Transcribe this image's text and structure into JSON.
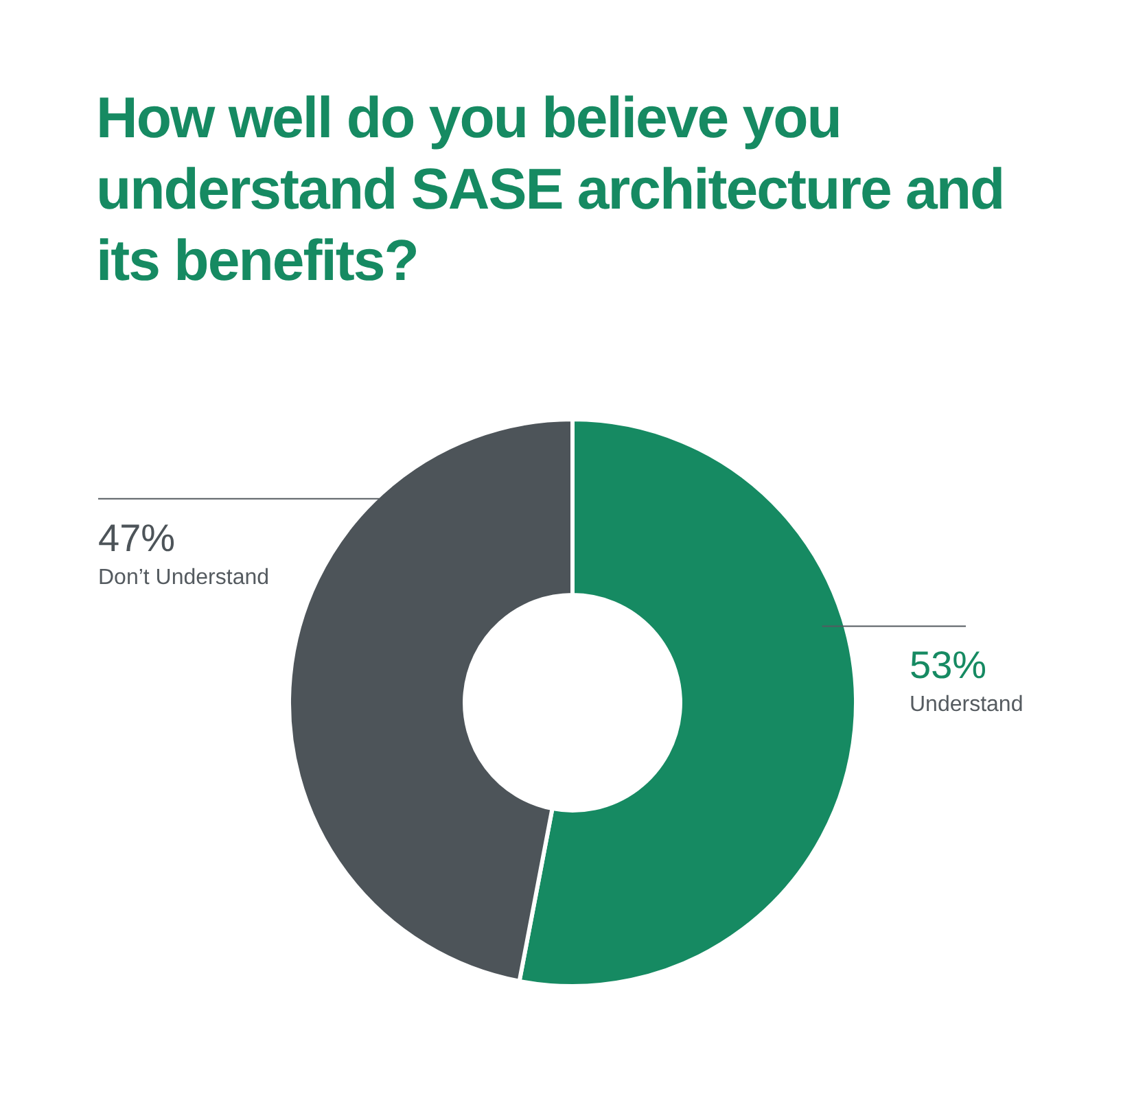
{
  "chart_data": {
    "type": "donut",
    "title": "How well do you believe you understand SASE architecture and its benefits?",
    "categories": [
      "Understand",
      "Don’t Understand"
    ],
    "values": [
      53,
      47
    ],
    "colors": [
      "#168a62",
      "#4d5459"
    ],
    "value_labels": [
      "53%",
      "47%"
    ],
    "legend": false
  }
}
